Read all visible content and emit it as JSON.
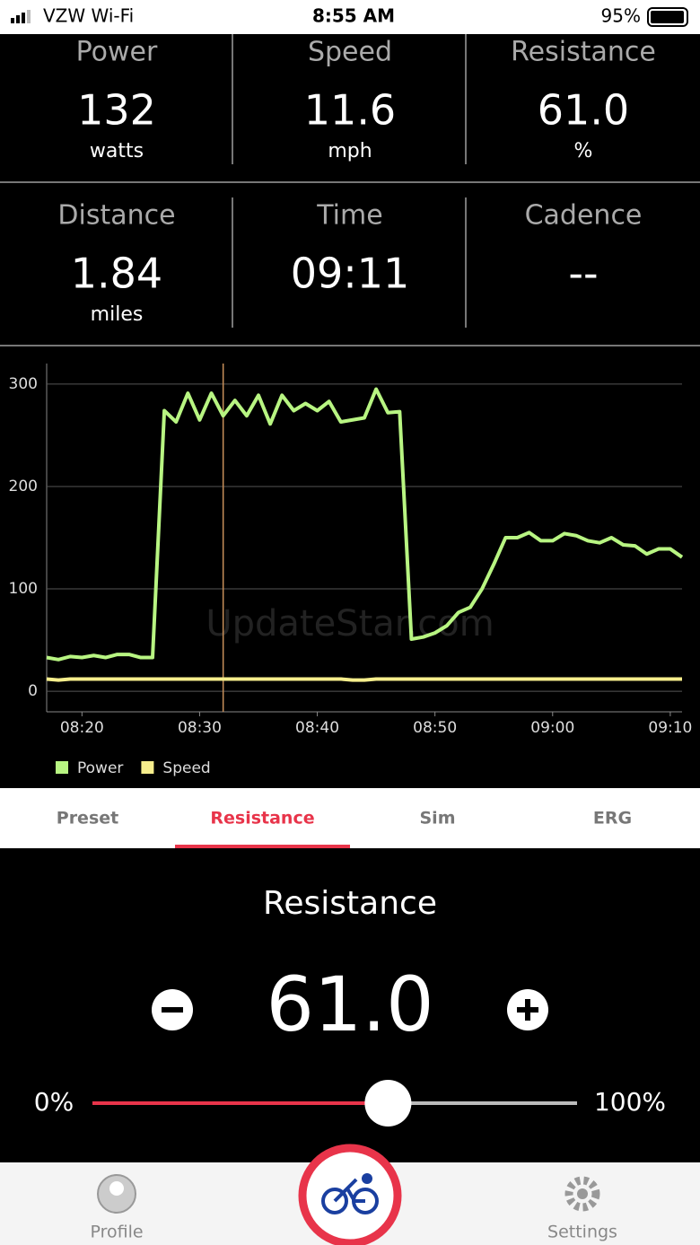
{
  "status_bar": {
    "carrier": "VZW Wi-Fi",
    "time": "8:55 AM",
    "battery": "95%"
  },
  "metrics": [
    {
      "label": "Power",
      "value": "132",
      "unit": "watts"
    },
    {
      "label": "Speed",
      "value": "11.6",
      "unit": "mph"
    },
    {
      "label": "Resistance",
      "value": "61.0",
      "unit": "%"
    },
    {
      "label": "Distance",
      "value": "1.84",
      "unit": "miles"
    },
    {
      "label": "Time",
      "value": "09:11"
    },
    {
      "label": "Cadence",
      "value": "--"
    }
  ],
  "chart_data": {
    "type": "line",
    "watermark": "UpdateStar.com",
    "x": [
      "08:17",
      "08:18",
      "08:19",
      "08:20",
      "08:21",
      "08:22",
      "08:23",
      "08:24",
      "08:25",
      "08:26",
      "08:27",
      "08:28",
      "08:29",
      "08:30",
      "08:31",
      "08:32",
      "08:33",
      "08:34",
      "08:35",
      "08:36",
      "08:37",
      "08:38",
      "08:39",
      "08:40",
      "08:41",
      "08:42",
      "08:43",
      "08:44",
      "08:45",
      "08:46",
      "08:47",
      "08:48",
      "08:49",
      "08:50",
      "08:51",
      "08:52",
      "08:53",
      "08:54",
      "08:55",
      "08:56",
      "08:57",
      "08:58",
      "08:59",
      "09:00",
      "09:01",
      "09:02",
      "09:03",
      "09:04",
      "09:05",
      "09:06",
      "09:07",
      "09:08",
      "09:09",
      "09:10",
      "09:11"
    ],
    "series": [
      {
        "name": "Power",
        "color": "#b8f582",
        "values": [
          33,
          31,
          34,
          33,
          35,
          33,
          36,
          36,
          33,
          33,
          274,
          263,
          291,
          265,
          291,
          269,
          284,
          269,
          289,
          261,
          289,
          274,
          281,
          274,
          283,
          263,
          265,
          267,
          295,
          272,
          273,
          51,
          53,
          57,
          64,
          77,
          82,
          100,
          124,
          150,
          150,
          155,
          147,
          147,
          154,
          152,
          147,
          145,
          150,
          143,
          142,
          134,
          139,
          139,
          131
        ]
      },
      {
        "name": "Speed",
        "color": "#f6ee8c",
        "values": [
          12,
          11,
          12,
          12,
          12,
          12,
          12,
          12,
          12,
          12,
          12,
          12,
          12,
          12,
          12,
          12,
          12,
          12,
          12,
          12,
          12,
          12,
          12,
          12,
          12,
          12,
          11,
          11,
          12,
          12,
          12,
          12,
          12,
          12,
          12,
          12,
          12,
          12,
          12,
          12,
          12,
          12,
          12,
          12,
          12,
          12,
          12,
          12,
          12,
          12,
          12,
          12,
          12,
          12,
          12
        ]
      }
    ],
    "cursor_x": "08:32",
    "xlim": [
      "08:17",
      "09:11"
    ],
    "xticks": [
      "08:20",
      "08:30",
      "08:40",
      "08:50",
      "09:00",
      "09:10"
    ],
    "ylim": [
      -20,
      320
    ],
    "yticks": [
      0,
      100,
      200,
      300
    ],
    "grid": true,
    "legend": "bottom-left"
  },
  "tabs": {
    "items": [
      "Preset",
      "Resistance",
      "Sim",
      "ERG"
    ],
    "active": 1
  },
  "control": {
    "title": "Resistance",
    "value": "61.0",
    "min_label": "0%",
    "max_label": "100%"
  },
  "nav": {
    "left": "Profile",
    "right": "Settings"
  }
}
